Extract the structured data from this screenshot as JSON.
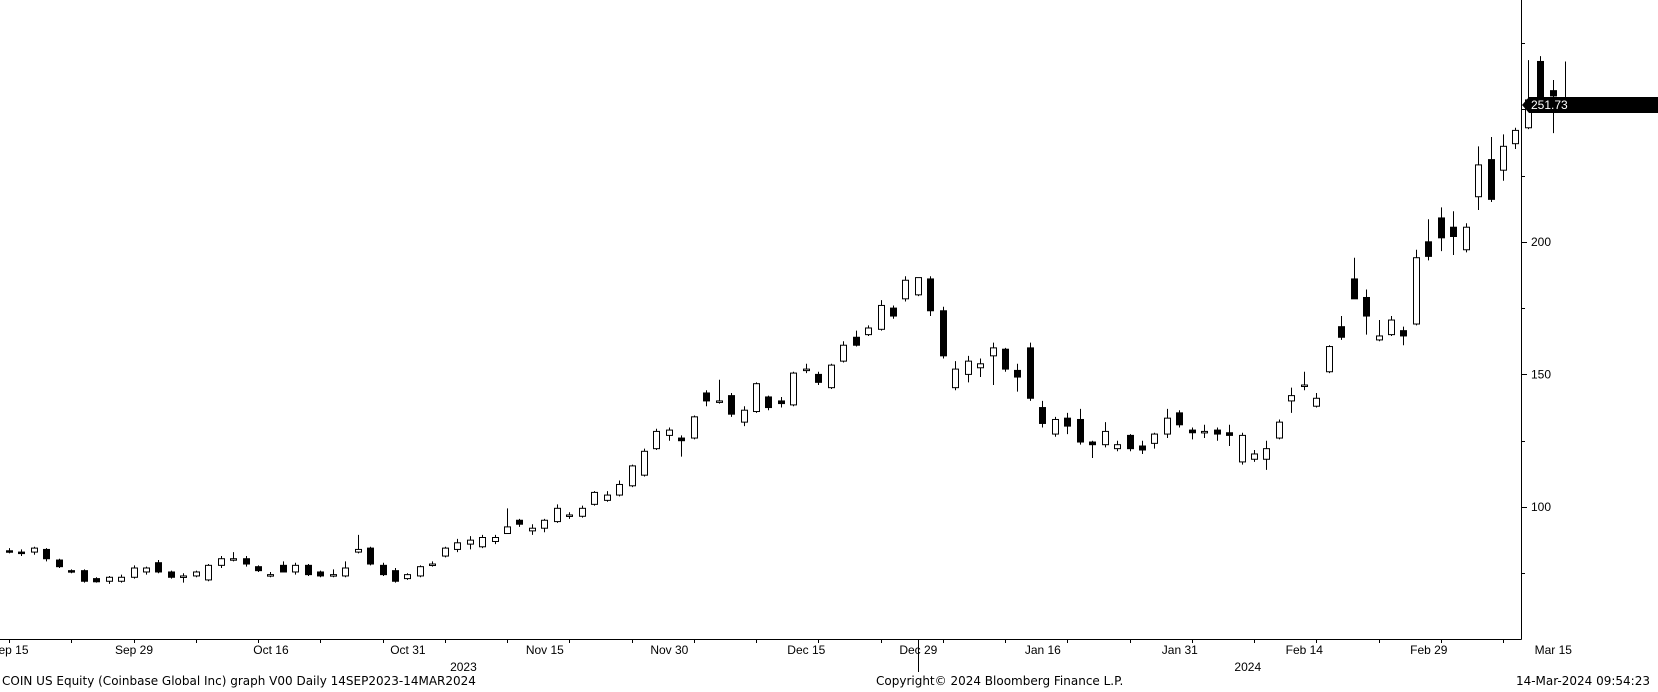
{
  "footer": {
    "left": "COIN US Equity (Coinbase Global Inc) graph V00  Daily 14SEP2023-14MAR2024",
    "center": "Copyright© 2024 Bloomberg Finance L.P.",
    "right": "14-Mar-2024 09:54:23"
  },
  "chart_data": {
    "type": "candlestick",
    "title": "",
    "xlabel": "",
    "ylabel": "",
    "ylim": [
      50,
      292
    ],
    "y_ticks": [
      100,
      150,
      200
    ],
    "grid": false,
    "legend": "none",
    "colors": {
      "up": "#ffffff",
      "down": "#000000",
      "outline": "#000000"
    },
    "last_price": 251.73,
    "last_price_label": "251.73",
    "x_tick_labels": [
      {
        "index": 0,
        "label": "Sep 15"
      },
      {
        "index": 10,
        "label": "Sep 29"
      },
      {
        "index": 21,
        "label": "Oct 16"
      },
      {
        "index": 32,
        "label": "Oct 31"
      },
      {
        "index": 43,
        "label": "Nov 15"
      },
      {
        "index": 53,
        "label": "Nov 30"
      },
      {
        "index": 64,
        "label": "Dec 15"
      },
      {
        "index": 73,
        "label": "Dec 29"
      },
      {
        "index": 83,
        "label": "Jan 16"
      },
      {
        "index": 94,
        "label": "Jan 31"
      },
      {
        "index": 104,
        "label": "Feb 14"
      },
      {
        "index": 114,
        "label": "Feb 29"
      },
      {
        "index": 124,
        "label": "Mar 15"
      }
    ],
    "year_labels": [
      {
        "index": 36.5,
        "label": "2023"
      },
      {
        "index": 99.5,
        "label": "2024"
      }
    ],
    "year_divider_index": 73,
    "candles": [
      [
        83.5,
        84.5,
        82.5,
        83.0
      ],
      [
        83.0,
        84.0,
        81.5,
        82.5
      ],
      [
        83.0,
        85.0,
        82.0,
        84.5
      ],
      [
        84.0,
        84.5,
        79.5,
        80.5
      ],
      [
        80.0,
        80.5,
        77.0,
        77.5
      ],
      [
        76.0,
        76.5,
        75.0,
        75.5
      ],
      [
        76.0,
        76.5,
        71.5,
        72.0
      ],
      [
        73.0,
        73.5,
        71.5,
        71.8
      ],
      [
        72.0,
        74.0,
        71.0,
        73.5
      ],
      [
        72.0,
        74.5,
        71.5,
        73.5
      ],
      [
        73.5,
        78.0,
        73.0,
        77.0
      ],
      [
        75.5,
        77.5,
        74.5,
        77.0
      ],
      [
        79.0,
        80.0,
        75.0,
        75.5
      ],
      [
        75.5,
        76.0,
        73.0,
        73.5
      ],
      [
        74.0,
        75.0,
        71.5,
        74.0
      ],
      [
        74.0,
        76.0,
        73.5,
        75.5
      ],
      [
        72.5,
        78.5,
        72.0,
        78.0
      ],
      [
        78.0,
        81.5,
        77.0,
        80.5
      ],
      [
        80.5,
        83.0,
        79.5,
        80.5
      ],
      [
        80.5,
        81.5,
        77.5,
        78.5
      ],
      [
        77.5,
        78.0,
        75.5,
        76.0
      ],
      [
        74.0,
        75.5,
        73.5,
        74.5
      ],
      [
        78.0,
        79.5,
        75.5,
        75.5
      ],
      [
        75.5,
        79.0,
        74.5,
        78.0
      ],
      [
        78.0,
        78.5,
        74.0,
        74.5
      ],
      [
        75.5,
        76.0,
        73.5,
        74.0
      ],
      [
        74.5,
        76.5,
        73.5,
        74.5
      ],
      [
        74.0,
        79.5,
        73.5,
        77.0
      ],
      [
        83.0,
        89.5,
        82.5,
        84.0
      ],
      [
        84.5,
        85.0,
        78.0,
        78.5
      ],
      [
        78.0,
        79.0,
        74.0,
        74.5
      ],
      [
        76.0,
        77.0,
        71.5,
        72.0
      ],
      [
        73.0,
        75.0,
        72.5,
        74.5
      ],
      [
        74.0,
        78.0,
        73.5,
        77.5
      ],
      [
        78.0,
        79.5,
        77.5,
        78.5
      ],
      [
        81.5,
        85.0,
        81.0,
        84.5
      ],
      [
        84.0,
        88.0,
        83.0,
        86.5
      ],
      [
        86.0,
        89.0,
        84.0,
        87.5
      ],
      [
        85.0,
        89.5,
        84.5,
        88.5
      ],
      [
        87.0,
        89.5,
        86.0,
        88.5
      ],
      [
        90.0,
        99.5,
        91.5,
        92.5
      ],
      [
        95.0,
        95.5,
        92.5,
        93.5
      ],
      [
        91.0,
        93.5,
        89.5,
        92.0
      ],
      [
        92.0,
        95.5,
        90.5,
        95.0
      ],
      [
        94.5,
        101.0,
        94.0,
        99.5
      ],
      [
        97.0,
        98.0,
        95.5,
        97.0
      ],
      [
        96.5,
        100.5,
        96.0,
        99.5
      ],
      [
        101.0,
        106.0,
        100.5,
        105.5
      ],
      [
        102.5,
        106.0,
        102.0,
        104.5
      ],
      [
        104.5,
        110.0,
        104.0,
        108.5
      ],
      [
        108.0,
        116.0,
        107.5,
        115.5
      ],
      [
        112.0,
        122.0,
        111.5,
        121.0
      ],
      [
        122.0,
        129.5,
        121.5,
        128.5
      ],
      [
        127.0,
        130.0,
        125.0,
        129.0
      ],
      [
        126.0,
        127.0,
        119.0,
        125.0
      ],
      [
        126.0,
        134.5,
        125.5,
        134.0
      ],
      [
        143.0,
        144.0,
        138.0,
        140.0
      ],
      [
        139.5,
        148.0,
        139.0,
        140.0
      ],
      [
        142.0,
        143.0,
        134.0,
        135.0
      ],
      [
        132.0,
        138.0,
        130.5,
        136.5
      ],
      [
        136.0,
        147.0,
        135.5,
        146.5
      ],
      [
        141.5,
        142.0,
        136.5,
        137.5
      ],
      [
        140.0,
        141.5,
        137.5,
        139.0
      ],
      [
        138.5,
        151.0,
        138.0,
        150.5
      ],
      [
        151.5,
        154.0,
        150.5,
        152.0
      ],
      [
        150.0,
        151.0,
        146.0,
        147.0
      ],
      [
        145.0,
        154.0,
        144.5,
        153.5
      ],
      [
        155.0,
        162.5,
        154.5,
        161.0
      ],
      [
        164.0,
        166.5,
        160.5,
        161.0
      ],
      [
        165.0,
        168.5,
        164.5,
        167.5
      ],
      [
        167.0,
        178.0,
        166.5,
        176.0
      ],
      [
        175.0,
        176.0,
        171.0,
        172.0
      ],
      [
        178.5,
        187.0,
        177.5,
        185.5
      ],
      [
        180.0,
        186.5,
        179.5,
        186.5
      ],
      [
        186.0,
        187.0,
        172.0,
        174.0
      ],
      [
        174.0,
        175.5,
        156.0,
        157.0
      ],
      [
        145.0,
        155.0,
        144.0,
        152.0
      ],
      [
        150.0,
        157.0,
        147.0,
        155.0
      ],
      [
        152.5,
        156.0,
        149.0,
        154.0
      ],
      [
        157.0,
        162.0,
        146.0,
        160.0
      ],
      [
        159.5,
        160.0,
        151.0,
        152.0
      ],
      [
        151.5,
        154.0,
        143.5,
        149.0
      ],
      [
        160.0,
        162.0,
        140.0,
        141.0
      ],
      [
        137.5,
        140.0,
        130.0,
        131.5
      ],
      [
        127.5,
        134.0,
        126.5,
        133.0
      ],
      [
        133.5,
        135.5,
        127.5,
        130.5
      ],
      [
        133.0,
        137.0,
        123.5,
        124.5
      ],
      [
        124.5,
        125.0,
        118.5,
        123.5
      ],
      [
        123.5,
        132.0,
        122.5,
        128.5
      ],
      [
        122.0,
        125.0,
        121.0,
        123.5
      ],
      [
        127.0,
        127.5,
        121.0,
        122.0
      ],
      [
        123.0,
        125.0,
        120.0,
        121.5
      ],
      [
        124.0,
        128.0,
        122.0,
        127.5
      ],
      [
        127.5,
        137.0,
        126.0,
        133.5
      ],
      [
        135.5,
        136.5,
        130.0,
        131.0
      ],
      [
        129.0,
        130.0,
        125.5,
        128.0
      ],
      [
        128.5,
        131.0,
        126.0,
        128.5
      ],
      [
        129.0,
        130.0,
        125.0,
        127.5
      ],
      [
        128.0,
        131.0,
        123.0,
        127.0
      ],
      [
        117.0,
        128.0,
        116.0,
        127.0
      ],
      [
        118.0,
        121.5,
        117.0,
        120.0
      ],
      [
        118.0,
        125.0,
        114.0,
        122.0
      ],
      [
        126.0,
        133.0,
        125.5,
        132.0
      ],
      [
        140.0,
        145.0,
        135.5,
        142.0
      ],
      [
        146.0,
        151.0,
        144.0,
        146.0
      ],
      [
        138.0,
        143.0,
        137.5,
        141.0
      ],
      [
        151.0,
        161.0,
        150.5,
        160.5
      ],
      [
        168.0,
        172.0,
        163.0,
        164.0
      ],
      [
        186.0,
        194.0,
        180.0,
        178.5
      ],
      [
        179.0,
        182.0,
        165.0,
        172.0
      ],
      [
        163.0,
        170.5,
        162.5,
        164.5
      ],
      [
        165.0,
        172.0,
        164.5,
        170.5
      ],
      [
        166.5,
        168.0,
        161.0,
        164.5
      ],
      [
        169.0,
        197.0,
        168.5,
        194.0
      ],
      [
        200.0,
        208.5,
        193.0,
        194.5
      ],
      [
        209.0,
        213.0,
        196.5,
        201.5
      ],
      [
        205.5,
        211.5,
        195.0,
        202.0
      ],
      [
        197.0,
        207.0,
        196.0,
        205.5
      ],
      [
        217.0,
        236.0,
        212.0,
        229.0
      ],
      [
        231.0,
        239.5,
        215.0,
        216.0
      ],
      [
        227.0,
        240.5,
        223.0,
        236.0
      ],
      [
        237.0,
        243.0,
        235.0,
        242.0
      ],
      [
        243.0,
        268.5,
        242.5,
        253.5
      ],
      [
        268.0,
        270.0,
        253.0,
        253.5
      ],
      [
        257.0,
        261.0,
        241.0,
        255.0
      ],
      [
        252.5,
        268.0,
        250.5,
        251.0
      ]
    ]
  }
}
